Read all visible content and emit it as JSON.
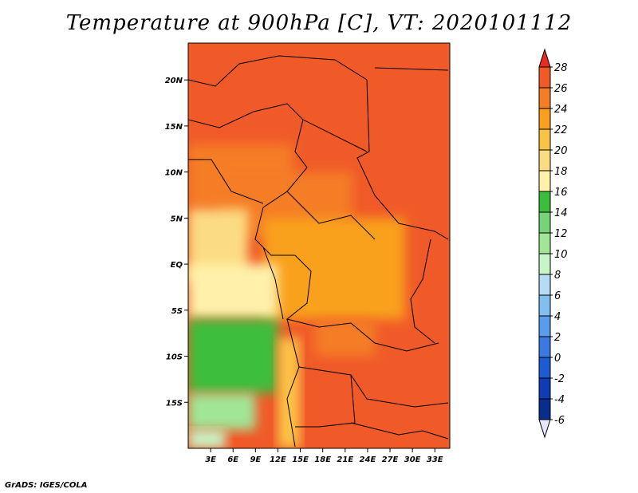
{
  "title": "Temperature at 900hPa [C], VT: 2020101112",
  "footer": "GrADS: IGES/COLA",
  "chart_data": {
    "type": "heatmap",
    "variable": "Temperature at 900hPa",
    "units": "C",
    "valid_time": "2020101112",
    "lon_range": [
      0,
      35
    ],
    "lat_range": [
      -20,
      24
    ],
    "x_ticks": [
      {
        "value": 3,
        "label": "3E"
      },
      {
        "value": 6,
        "label": "6E"
      },
      {
        "value": 9,
        "label": "9E"
      },
      {
        "value": 12,
        "label": "12E"
      },
      {
        "value": 15,
        "label": "15E"
      },
      {
        "value": 18,
        "label": "18E"
      },
      {
        "value": 21,
        "label": "21E"
      },
      {
        "value": 24,
        "label": "24E"
      },
      {
        "value": 27,
        "label": "27E"
      },
      {
        "value": 30,
        "label": "30E"
      },
      {
        "value": 33,
        "label": "33E"
      }
    ],
    "y_ticks": [
      {
        "value": 20,
        "label": "20N"
      },
      {
        "value": 15,
        "label": "15N"
      },
      {
        "value": 10,
        "label": "10N"
      },
      {
        "value": 5,
        "label": "5N"
      },
      {
        "value": 0,
        "label": "EQ"
      },
      {
        "value": -5,
        "label": "5S"
      },
      {
        "value": -10,
        "label": "10S"
      },
      {
        "value": -15,
        "label": "15S"
      }
    ],
    "colorbar": {
      "levels": [
        28,
        26,
        24,
        22,
        20,
        18,
        16,
        14,
        12,
        10,
        8,
        6,
        4,
        2,
        0,
        -2,
        -4,
        -6
      ],
      "colors": [
        "#e62d1e",
        "#f05a28",
        "#f57d28",
        "#f9a01e",
        "#fbc346",
        "#fbdc82",
        "#fff0aa",
        "#3cbe3c",
        "#78d278",
        "#a0e696",
        "#c8f5c8",
        "#b4dcf5",
        "#82bef0",
        "#5a9beb",
        "#3c78e1",
        "#1e5ad2",
        "#0f3cb4",
        "#082d8c",
        "#050a50"
      ]
    },
    "regions": [
      {
        "lon": [
          0,
          35
        ],
        "lat": [
          -20,
          24
        ],
        "value": 27
      },
      {
        "lon": [
          0,
          14
        ],
        "lat": [
          6,
          13
        ],
        "value": 25
      },
      {
        "lon": [
          4,
          22
        ],
        "lat": [
          3,
          10
        ],
        "value": 24
      },
      {
        "lon": [
          10,
          29
        ],
        "lat": [
          -6,
          5
        ],
        "value": 23
      },
      {
        "lon": [
          0,
          8
        ],
        "lat": [
          -2,
          6
        ],
        "value": 19
      },
      {
        "lon": [
          0,
          12
        ],
        "lat": [
          -6,
          0
        ],
        "value": 17
      },
      {
        "lon": [
          0,
          12
        ],
        "lat": [
          -14,
          -6
        ],
        "value": 14
      },
      {
        "lon": [
          0,
          9
        ],
        "lat": [
          -18,
          -14
        ],
        "value": 11
      },
      {
        "lon": [
          0,
          5
        ],
        "lat": [
          -20,
          -18
        ],
        "value": 8
      },
      {
        "lon": [
          12,
          15
        ],
        "lat": [
          -20,
          -8
        ],
        "value": 20
      },
      {
        "lon": [
          17,
          25
        ],
        "lat": [
          -10,
          -6
        ],
        "value": 25
      }
    ]
  }
}
